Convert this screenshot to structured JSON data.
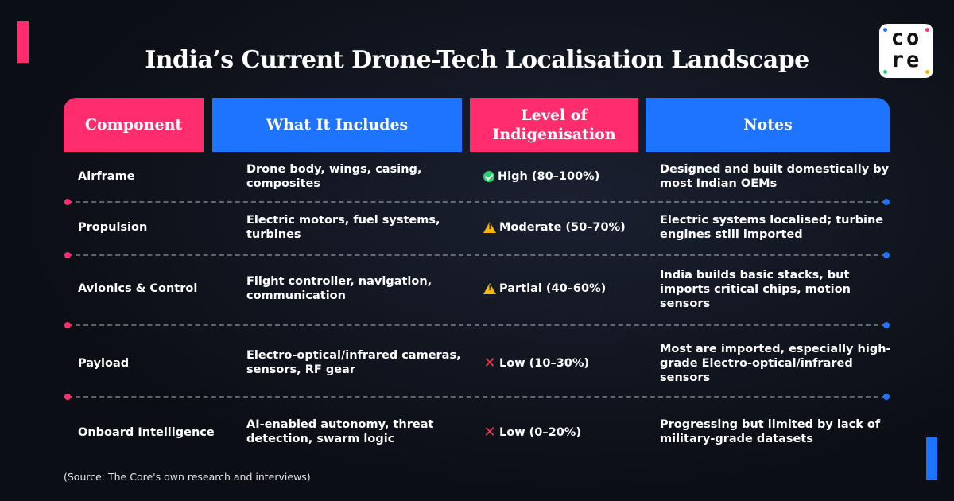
{
  "title": "India’s Current Drone-Tech Localisation Landscape",
  "logo": {
    "line1": "co",
    "line2": "re"
  },
  "headers": {
    "component": "Component",
    "includes": "What It Includes",
    "level": "Level of Indigenisation",
    "notes": "Notes"
  },
  "rows": [
    {
      "component": "Airframe",
      "includes": "Drone body, wings, casing, composites",
      "level": "High (80–100%)",
      "level_icon": "check-icon",
      "notes": "Designed and built domestically by most Indian OEMs"
    },
    {
      "component": "Propulsion",
      "includes": "Electric motors, fuel systems, turbines",
      "level": "Moderate (50–70%)",
      "level_icon": "warning-icon",
      "notes": "Electric systems localised; turbine engines still imported"
    },
    {
      "component": "Avionics & Control",
      "includes": "Flight controller, navigation, communication",
      "level": "Partial (40–60%)",
      "level_icon": "warning-icon",
      "notes": "India builds basic stacks, but imports critical chips, motion sensors"
    },
    {
      "component": "Payload",
      "includes": "Electro-optical/infrared cameras, sensors, RF gear",
      "level": "Low (10–30%)",
      "level_icon": "cross-icon",
      "notes": "Most are imported, especially high-grade Electro-optical/infrared sensors"
    },
    {
      "component": "Onboard Intelligence",
      "includes": "AI-enabled autonomy, threat detection, swarm logic",
      "level": "Low (0–20%)",
      "level_icon": "cross-icon",
      "notes": "Progressing but limited by lack of military-grade datasets"
    }
  ],
  "source": "(Source: The Core's own research and interviews)",
  "colors": {
    "pink": "#ff2d6e",
    "blue": "#1e74ff",
    "background": "#0d1117"
  }
}
